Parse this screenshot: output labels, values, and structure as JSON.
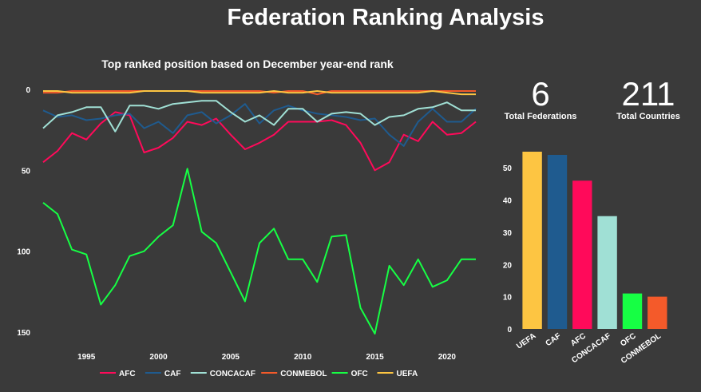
{
  "title": "Federation Ranking Analysis",
  "stats": {
    "federations": {
      "value": "6",
      "label": "Total Federations"
    },
    "countries": {
      "value": "211",
      "label": "Total Countries"
    }
  },
  "chart_data": [
    {
      "type": "line",
      "title": "Top ranked position based on December year-end rank",
      "xlabel": "",
      "ylabel": "",
      "y_reversed": true,
      "xlim": [
        1992,
        2022
      ],
      "ylim": [
        0,
        150
      ],
      "x_ticks": [
        1995,
        2000,
        2005,
        2010,
        2015,
        2020
      ],
      "y_ticks": [
        0,
        50,
        100,
        150
      ],
      "grid": false,
      "legend_position": "bottom",
      "x": [
        1992,
        1993,
        1994,
        1995,
        1996,
        1997,
        1998,
        1999,
        2000,
        2001,
        2002,
        2003,
        2004,
        2005,
        2006,
        2007,
        2008,
        2009,
        2010,
        2011,
        2012,
        2013,
        2014,
        2015,
        2016,
        2017,
        2018,
        2019,
        2020,
        2021,
        2022
      ],
      "series": [
        {
          "name": "AFC",
          "color": "#ff0a5a",
          "values": [
            45,
            38,
            27,
            31,
            21,
            14,
            16,
            39,
            36,
            30,
            20,
            22,
            18,
            28,
            37,
            33,
            28,
            20,
            20,
            20,
            19,
            22,
            33,
            50,
            45,
            28,
            32,
            20,
            28,
            27,
            20
          ]
        },
        {
          "name": "CAF",
          "color": "#1f5b8f",
          "values": [
            13,
            17,
            16,
            19,
            18,
            16,
            15,
            24,
            20,
            27,
            16,
            14,
            21,
            16,
            9,
            21,
            13,
            10,
            13,
            15,
            16,
            17,
            19,
            18,
            28,
            35,
            20,
            12,
            20,
            20,
            12
          ]
        },
        {
          "name": "CONCACAF",
          "color": "#a0e0d5",
          "values": [
            24,
            16,
            14,
            11,
            11,
            26,
            10,
            10,
            12,
            9,
            8,
            7,
            7,
            14,
            20,
            16,
            22,
            12,
            12,
            20,
            15,
            14,
            15,
            22,
            17,
            16,
            12,
            11,
            8,
            13,
            13
          ]
        },
        {
          "name": "CONMEBOL",
          "color": "#f45a2a",
          "values": [
            2,
            2,
            1,
            1,
            1,
            1,
            1,
            1,
            1,
            1,
            1,
            1,
            1,
            1,
            1,
            1,
            2,
            1,
            1,
            3,
            1,
            1,
            1,
            1,
            1,
            1,
            1,
            1,
            1,
            1,
            1
          ]
        },
        {
          "name": "OFC",
          "color": "#16ff44",
          "values": [
            70,
            77,
            99,
            102,
            133,
            121,
            103,
            100,
            91,
            84,
            49,
            88,
            95,
            113,
            131,
            95,
            86,
            105,
            105,
            119,
            91,
            90,
            135,
            151,
            109,
            121,
            105,
            122,
            118,
            105,
            105
          ]
        },
        {
          "name": "UEFA",
          "color": "#fdc542",
          "values": [
            1,
            1,
            2,
            2,
            2,
            2,
            2,
            1,
            1,
            1,
            1,
            2,
            2,
            2,
            2,
            2,
            1,
            2,
            2,
            1,
            2,
            2,
            2,
            2,
            2,
            2,
            2,
            1,
            2,
            3,
            3
          ]
        }
      ]
    },
    {
      "type": "bar",
      "title": "",
      "categories": [
        "UEFA",
        "CAF",
        "AFC",
        "CONCACAF",
        "OFC",
        "CONMEBOL"
      ],
      "values": [
        55,
        54,
        46,
        35,
        11,
        10
      ],
      "colors": [
        "#fdc542",
        "#1f5b8f",
        "#ff0a5a",
        "#a0e0d5",
        "#16ff44",
        "#f45a2a"
      ],
      "ylim": [
        0,
        55
      ],
      "y_ticks": [
        0,
        10,
        20,
        30,
        40,
        50
      ],
      "grid": false
    }
  ]
}
